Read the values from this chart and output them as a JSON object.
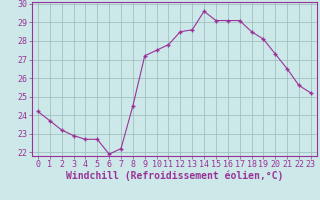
{
  "x": [
    0,
    1,
    2,
    3,
    4,
    5,
    6,
    7,
    8,
    9,
    10,
    11,
    12,
    13,
    14,
    15,
    16,
    17,
    18,
    19,
    20,
    21,
    22,
    23
  ],
  "y": [
    24.2,
    23.7,
    23.2,
    22.9,
    22.7,
    22.7,
    21.9,
    22.2,
    24.5,
    27.2,
    27.5,
    27.8,
    28.5,
    28.6,
    29.6,
    29.1,
    29.1,
    29.1,
    28.5,
    28.1,
    27.3,
    26.5,
    25.6,
    25.2
  ],
  "line_color": "#993399",
  "marker_color": "#993399",
  "bg_color": "#cce8e8",
  "grid_color": "#99bbbb",
  "xlabel": "Windchill (Refroidissement éolien,°C)",
  "ylim": [
    21.8,
    30.1
  ],
  "yticks": [
    22,
    23,
    24,
    25,
    26,
    27,
    28,
    29,
    30
  ],
  "ytick_labels": [
    "22",
    "23",
    "24",
    "25",
    "26",
    "27",
    "28",
    "29",
    "30"
  ],
  "xticks": [
    0,
    1,
    2,
    3,
    4,
    5,
    6,
    7,
    8,
    9,
    10,
    11,
    12,
    13,
    14,
    15,
    16,
    17,
    18,
    19,
    20,
    21,
    22,
    23
  ],
  "xtick_labels": [
    "0",
    "1",
    "2",
    "3",
    "4",
    "5",
    "6",
    "7",
    "8",
    "9",
    "10",
    "11",
    "12",
    "13",
    "14",
    "15",
    "16",
    "17",
    "18",
    "19",
    "20",
    "21",
    "22",
    "23"
  ],
  "label_color": "#993399",
  "axis_label_fontsize": 7,
  "tick_fontsize": 6,
  "xlim": [
    -0.5,
    23.5
  ]
}
